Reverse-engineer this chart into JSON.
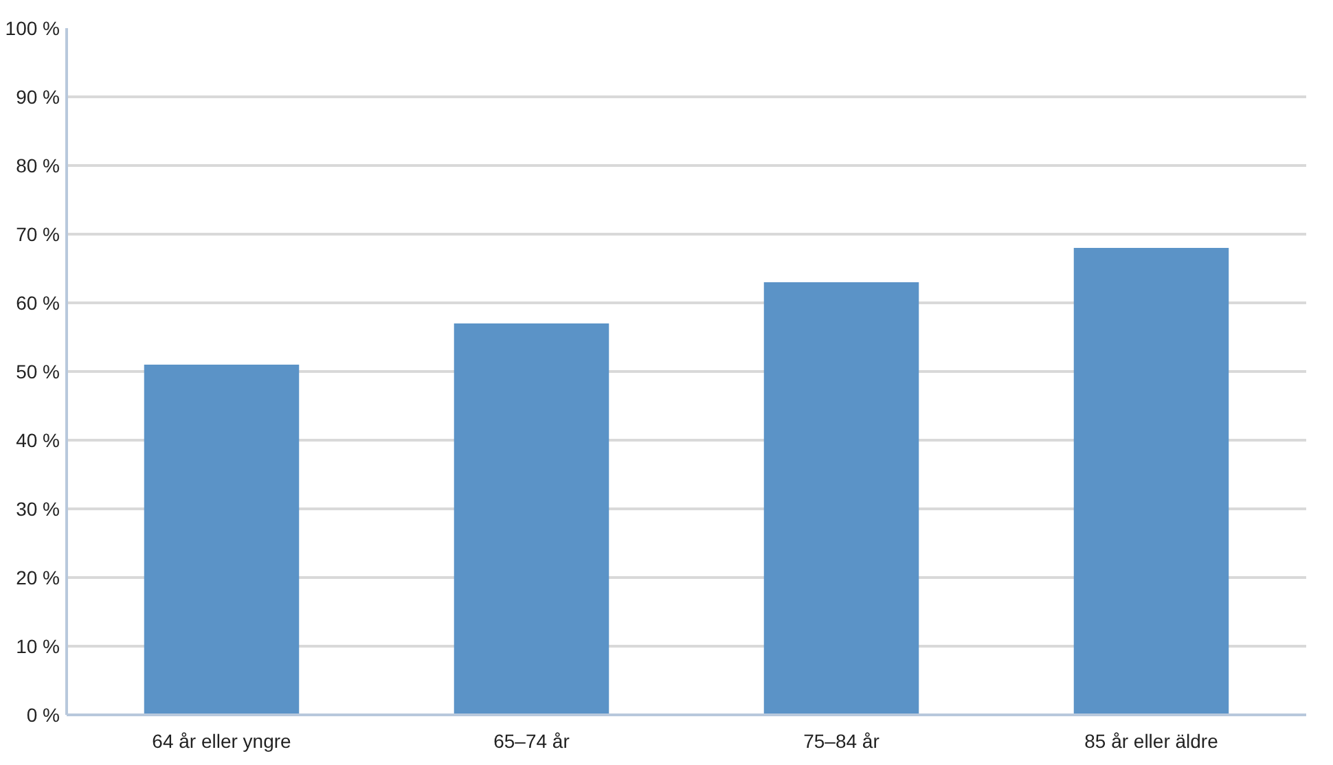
{
  "chart_data": {
    "type": "bar",
    "categories": [
      "64 år eller yngre",
      "65–74 år",
      "75–84 år",
      "85 år eller äldre"
    ],
    "values": [
      51,
      57,
      63,
      68
    ],
    "color": "#5b93c7",
    "ylim": [
      0,
      100
    ],
    "yticks": [
      {
        "value": 0,
        "label": "0 %"
      },
      {
        "value": 10,
        "label": "10 %"
      },
      {
        "value": 20,
        "label": "20 %"
      },
      {
        "value": 30,
        "label": "30 %"
      },
      {
        "value": 40,
        "label": "40 %"
      },
      {
        "value": 50,
        "label": "50 %"
      },
      {
        "value": 60,
        "label": "60 %"
      },
      {
        "value": 70,
        "label": "70 %"
      },
      {
        "value": 80,
        "label": "80 %"
      },
      {
        "value": 90,
        "label": "90 %"
      },
      {
        "value": 100,
        "label": "100 %"
      }
    ],
    "grid": "y"
  }
}
